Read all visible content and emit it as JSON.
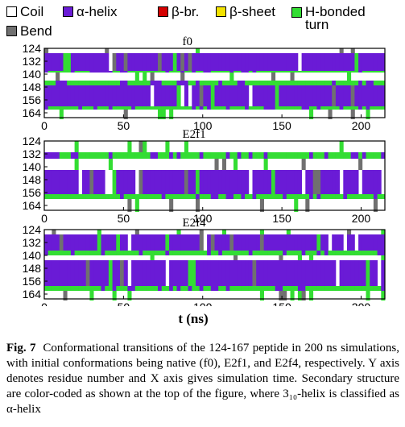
{
  "legend": [
    {
      "key": "coil",
      "label": "Coil",
      "color": "#ffffff"
    },
    {
      "key": "alpha",
      "label": "α-helix",
      "color": "#6a1bd6"
    },
    {
      "key": "bbr",
      "label": "β-br.",
      "color": "#d40000"
    },
    {
      "key": "bsheet",
      "label": "β-sheet",
      "color": "#f2e200"
    },
    {
      "key": "hturn",
      "label": "H-bonded turn",
      "color": "#33dd33"
    },
    {
      "key": "bend",
      "label": "Bend",
      "color": "#707070"
    }
  ],
  "chart_data": [
    {
      "type": "heatmap",
      "title": "f0",
      "xlabel": "t (ns)",
      "ylabel": "",
      "xlim": [
        0,
        215
      ],
      "ylim": [
        124,
        167
      ],
      "x_ticks": [
        0,
        50,
        100,
        150,
        200
      ],
      "y_ticks": [
        124,
        132,
        140,
        148,
        156,
        164
      ],
      "bands": [
        {
          "residues": [
            124,
            126
          ],
          "state": "coil"
        },
        {
          "residues": [
            127,
            137
          ],
          "state": "alpha"
        },
        {
          "residues": [
            138,
            138
          ],
          "state": "hturn"
        },
        {
          "residues": [
            139,
            143
          ],
          "state": "coil"
        },
        {
          "residues": [
            144,
            146
          ],
          "state": "hturn"
        },
        {
          "residues": [
            147,
            159
          ],
          "state": "alpha"
        },
        {
          "residues": [
            160,
            161
          ],
          "state": "hturn"
        },
        {
          "residues": [
            162,
            167
          ],
          "state": "coil"
        }
      ]
    },
    {
      "type": "heatmap",
      "title": "E2f1",
      "xlabel": "t (ns)",
      "ylabel": "",
      "xlim": [
        0,
        215
      ],
      "ylim": [
        124,
        167
      ],
      "x_ticks": [
        0,
        50,
        100,
        150,
        200
      ],
      "y_ticks": [
        124,
        132,
        140,
        148,
        156,
        164
      ],
      "bands": [
        {
          "residues": [
            124,
            130
          ],
          "state": "coil"
        },
        {
          "residues": [
            131,
            134
          ],
          "state": "hturn"
        },
        {
          "residues": [
            135,
            141
          ],
          "state": "coil"
        },
        {
          "residues": [
            142,
            156
          ],
          "state": "alpha"
        },
        {
          "residues": [
            157,
            159
          ],
          "state": "hturn"
        },
        {
          "residues": [
            160,
            167
          ],
          "state": "coil"
        }
      ]
    },
    {
      "type": "heatmap",
      "title": "E2f4",
      "xlabel": "t (ns)",
      "ylabel": "",
      "xlim": [
        0,
        215
      ],
      "ylim": [
        124,
        167
      ],
      "x_ticks": [
        0,
        50,
        100,
        150,
        200
      ],
      "y_ticks": [
        124,
        132,
        140,
        148,
        156,
        164
      ],
      "bands": [
        {
          "residues": [
            124,
            126
          ],
          "state": "coil"
        },
        {
          "residues": [
            127,
            136
          ],
          "state": "alpha"
        },
        {
          "residues": [
            137,
            139
          ],
          "state": "hturn"
        },
        {
          "residues": [
            140,
            142
          ],
          "state": "coil"
        },
        {
          "residues": [
            143,
            158
          ],
          "state": "alpha"
        },
        {
          "residues": [
            159,
            161
          ],
          "state": "hturn"
        },
        {
          "residues": [
            162,
            167
          ],
          "state": "coil"
        }
      ]
    }
  ],
  "caption": {
    "fig_label": "Fig. 7",
    "text": "Conformational transitions of the 124-167 peptide in 200 ns simulations, with initial conformations being native (f0), E2f1, and E2f4, respectively. Y axis denotes residue number and X axis gives simulation time. Secondary structure are color-coded as shown at the top of the figure, where 3₁₀-helix is classified as α-helix"
  }
}
